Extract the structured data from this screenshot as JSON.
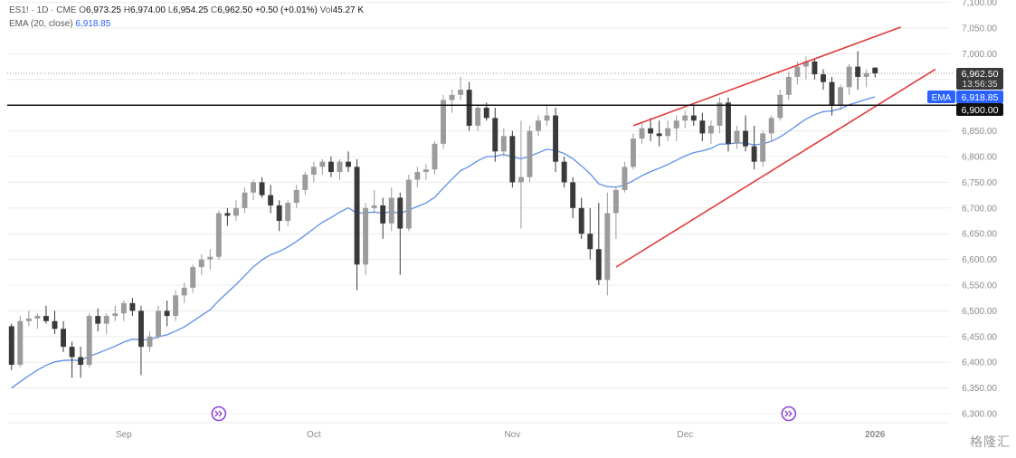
{
  "header": {
    "symbol": "ES1! · 1D · CME",
    "open_label": "O",
    "open_value": "6,973.25",
    "high_label": "H",
    "high_value": "6,974.00",
    "low_label": "L",
    "low_value": "6,954.25",
    "close_label": "C",
    "close_value": "6,962.50",
    "change": "+0.50 (+0.01%)",
    "volume_label": "Vol",
    "volume_value": "45.27 K",
    "ema_label": "EMA (20, close)",
    "ema_value": "6,918.85"
  },
  "badges": {
    "last_price": "6,962.50",
    "countdown": "13:56:35",
    "ema_tag": "EMA",
    "ema_price": "6,918.85",
    "level_price": "6,900.00"
  },
  "watermark": "格隆汇",
  "colors": {
    "candle_up": "#9b9b9b",
    "candle_down": "#3a3a3a",
    "ema": "#5b8fe8",
    "trendline": "#e23b3b",
    "level": "#111111",
    "event_icon": "#8e44d6"
  },
  "chart_data": {
    "type": "candlestick",
    "y_ticks": [
      "6,300.00",
      "6,350.00",
      "6,400.00",
      "6,450.00",
      "6,500.00",
      "6,550.00",
      "6,600.00",
      "6,650.00",
      "6,700.00",
      "6,750.00",
      "6,800.00",
      "6,850.00",
      "6,900.00",
      "6,950.00",
      "7,000.00",
      "7,050.00",
      "7,100.00"
    ],
    "ylim": [
      6285,
      7105
    ],
    "x_labels": [
      {
        "label": "Sep",
        "index": 13
      },
      {
        "label": "Oct",
        "index": 35
      },
      {
        "label": "Nov",
        "index": 58
      },
      {
        "label": "Dec",
        "index": 78
      },
      {
        "label": "2026",
        "index": 100
      }
    ],
    "horizontal_level": 6900,
    "candles": [
      [
        6470,
        6475,
        6385,
        6395
      ],
      [
        6395,
        6490,
        6390,
        6480
      ],
      [
        6480,
        6500,
        6470,
        6485
      ],
      [
        6485,
        6495,
        6465,
        6490
      ],
      [
        6490,
        6510,
        6475,
        6480
      ],
      [
        6480,
        6500,
        6455,
        6465
      ],
      [
        6465,
        6480,
        6420,
        6430
      ],
      [
        6430,
        6440,
        6370,
        6410
      ],
      [
        6410,
        6430,
        6370,
        6395
      ],
      [
        6395,
        6495,
        6390,
        6490
      ],
      [
        6490,
        6505,
        6460,
        6475
      ],
      [
        6475,
        6495,
        6455,
        6490
      ],
      [
        6490,
        6510,
        6480,
        6495
      ],
      [
        6495,
        6520,
        6480,
        6515
      ],
      [
        6515,
        6525,
        6490,
        6500
      ],
      [
        6500,
        6510,
        6375,
        6430
      ],
      [
        6430,
        6460,
        6420,
        6450
      ],
      [
        6450,
        6510,
        6445,
        6500
      ],
      [
        6500,
        6520,
        6470,
        6490
      ],
      [
        6490,
        6540,
        6480,
        6530
      ],
      [
        6530,
        6555,
        6515,
        6545
      ],
      [
        6545,
        6590,
        6535,
        6585
      ],
      [
        6585,
        6610,
        6570,
        6600
      ],
      [
        6600,
        6620,
        6580,
        6605
      ],
      [
        6605,
        6695,
        6600,
        6690
      ],
      [
        6690,
        6700,
        6665,
        6685
      ],
      [
        6685,
        6715,
        6675,
        6700
      ],
      [
        6700,
        6740,
        6690,
        6730
      ],
      [
        6730,
        6755,
        6715,
        6750
      ],
      [
        6750,
        6760,
        6720,
        6725
      ],
      [
        6725,
        6745,
        6690,
        6705
      ],
      [
        6705,
        6715,
        6655,
        6675
      ],
      [
        6675,
        6715,
        6665,
        6710
      ],
      [
        6710,
        6745,
        6700,
        6735
      ],
      [
        6735,
        6770,
        6725,
        6765
      ],
      [
        6765,
        6790,
        6750,
        6780
      ],
      [
        6780,
        6795,
        6765,
        6790
      ],
      [
        6790,
        6800,
        6760,
        6770
      ],
      [
        6770,
        6795,
        6755,
        6790
      ],
      [
        6790,
        6810,
        6770,
        6780
      ],
      [
        6780,
        6795,
        6540,
        6590
      ],
      [
        6590,
        6710,
        6570,
        6700
      ],
      [
        6700,
        6735,
        6690,
        6705
      ],
      [
        6705,
        6720,
        6640,
        6670
      ],
      [
        6670,
        6740,
        6655,
        6720
      ],
      [
        6720,
        6730,
        6570,
        6660
      ],
      [
        6660,
        6765,
        6655,
        6755
      ],
      [
        6755,
        6780,
        6740,
        6770
      ],
      [
        6770,
        6785,
        6755,
        6775
      ],
      [
        6775,
        6830,
        6765,
        6825
      ],
      [
        6825,
        6920,
        6815,
        6910
      ],
      [
        6910,
        6930,
        6885,
        6920
      ],
      [
        6920,
        6955,
        6910,
        6930
      ],
      [
        6930,
        6945,
        6850,
        6860
      ],
      [
        6860,
        6900,
        6850,
        6895
      ],
      [
        6895,
        6905,
        6870,
        6875
      ],
      [
        6875,
        6895,
        6790,
        6810
      ],
      [
        6810,
        6855,
        6800,
        6840
      ],
      [
        6840,
        6850,
        6740,
        6750
      ],
      [
        6750,
        6870,
        6660,
        6760
      ],
      [
        6760,
        6860,
        6750,
        6850
      ],
      [
        6850,
        6880,
        6840,
        6870
      ],
      [
        6870,
        6900,
        6860,
        6880
      ],
      [
        6880,
        6895,
        6770,
        6790
      ],
      [
        6790,
        6800,
        6740,
        6750
      ],
      [
        6750,
        6760,
        6680,
        6700
      ],
      [
        6700,
        6720,
        6640,
        6650
      ],
      [
        6650,
        6700,
        6600,
        6620
      ],
      [
        6620,
        6710,
        6550,
        6560
      ],
      [
        6560,
        6730,
        6530,
        6690
      ],
      [
        6690,
        6740,
        6640,
        6735
      ],
      [
        6735,
        6790,
        6730,
        6780
      ],
      [
        6780,
        6845,
        6775,
        6835
      ],
      [
        6835,
        6865,
        6825,
        6855
      ],
      [
        6855,
        6875,
        6830,
        6845
      ],
      [
        6845,
        6870,
        6820,
        6840
      ],
      [
        6840,
        6870,
        6830,
        6855
      ],
      [
        6855,
        6880,
        6830,
        6870
      ],
      [
        6870,
        6890,
        6855,
        6880
      ],
      [
        6880,
        6900,
        6860,
        6870
      ],
      [
        6870,
        6885,
        6830,
        6845
      ],
      [
        6845,
        6870,
        6825,
        6860
      ],
      [
        6860,
        6915,
        6845,
        6905
      ],
      [
        6905,
        6915,
        6810,
        6825
      ],
      [
        6825,
        6860,
        6815,
        6850
      ],
      [
        6850,
        6880,
        6810,
        6820
      ],
      [
        6820,
        6860,
        6775,
        6790
      ],
      [
        6790,
        6850,
        6780,
        6845
      ],
      [
        6845,
        6880,
        6830,
        6875
      ],
      [
        6875,
        6930,
        6870,
        6920
      ],
      [
        6920,
        6965,
        6910,
        6955
      ],
      [
        6955,
        6985,
        6940,
        6975
      ],
      [
        6975,
        6995,
        6950,
        6985
      ],
      [
        6985,
        6990,
        6950,
        6960
      ],
      [
        6960,
        6970,
        6930,
        6945
      ],
      [
        6945,
        6955,
        6880,
        6900
      ],
      [
        6900,
        6940,
        6890,
        6935
      ],
      [
        6935,
        6980,
        6920,
        6975
      ],
      [
        6975,
        7005,
        6930,
        6955
      ],
      [
        6955,
        6970,
        6935,
        6962
      ],
      [
        6973,
        6974,
        6954,
        6962
      ]
    ],
    "ema_start": 6345,
    "trendlines": [
      {
        "from": [
          70,
          6585
        ],
        "to": [
          107,
          6970
        ]
      },
      {
        "from": [
          72,
          6860
        ],
        "to": [
          103,
          7052
        ]
      }
    ],
    "event_markers": [
      24,
      90
    ]
  }
}
